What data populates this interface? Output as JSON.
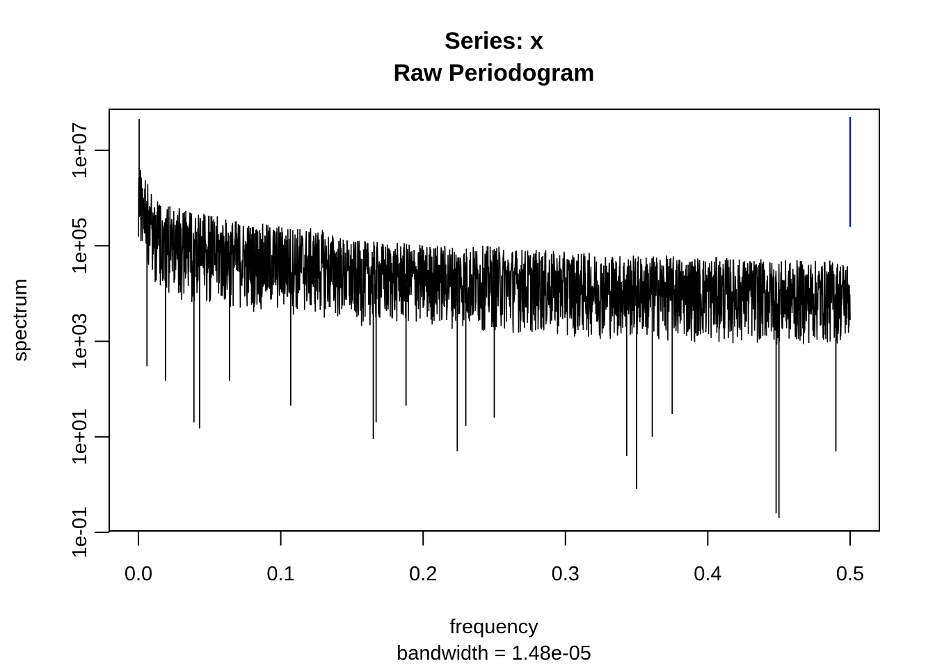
{
  "chart_data": {
    "type": "line",
    "title": "Series: x",
    "subtitle": "Raw Periodogram",
    "xlabel": "frequency",
    "xlabel_sub": "bandwidth = 1.48e-05",
    "ylabel": "spectrum",
    "xlim": [
      0,
      0.5
    ],
    "ylim": [
      0.1,
      50000000
    ],
    "y_scale": "log",
    "x_ticks": [
      "0.0",
      "0.1",
      "0.2",
      "0.3",
      "0.4",
      "0.5"
    ],
    "y_ticks": [
      "1e-01",
      "1e+01",
      "1e+03",
      "1e+05",
      "1e+07"
    ],
    "grid": false,
    "bandwidth": 1.48e-05,
    "series_color": "#000000",
    "ci_bar": {
      "x": 0.5,
      "y_low": 250000,
      "y_high": 50000000,
      "color": "#0000ff"
    },
    "envelope": {
      "x": [
        0,
        0.005,
        0.01,
        0.02,
        0.03,
        0.05,
        0.08,
        0.1,
        0.13,
        0.15,
        0.2,
        0.25,
        0.3,
        0.35,
        0.4,
        0.45,
        0.5
      ],
      "upper": [
        5000000,
        3000000,
        1200000,
        800000,
        600000,
        450000,
        300000,
        280000,
        220000,
        130000,
        110000,
        100000,
        75000,
        65000,
        60000,
        50000,
        50000
      ],
      "lower": [
        150000,
        50000,
        15000,
        10000,
        6000,
        5000,
        4000,
        3500,
        3000,
        2000,
        2000,
        1500,
        1200,
        1000,
        900,
        800,
        800
      ]
    },
    "spikes": [
      {
        "x": 0.0005,
        "y": 45000000
      },
      {
        "x": 0.006,
        "y": 300
      },
      {
        "x": 0.019,
        "y": 150
      },
      {
        "x": 0.039,
        "y": 20
      },
      {
        "x": 0.043,
        "y": 15
      },
      {
        "x": 0.064,
        "y": 150
      },
      {
        "x": 0.107,
        "y": 45
      },
      {
        "x": 0.165,
        "y": 9
      },
      {
        "x": 0.167,
        "y": 20
      },
      {
        "x": 0.188,
        "y": 45
      },
      {
        "x": 0.224,
        "y": 5
      },
      {
        "x": 0.23,
        "y": 17
      },
      {
        "x": 0.25,
        "y": 25
      },
      {
        "x": 0.343,
        "y": 4
      },
      {
        "x": 0.35,
        "y": 0.8
      },
      {
        "x": 0.361,
        "y": 10
      },
      {
        "x": 0.375,
        "y": 30
      },
      {
        "x": 0.448,
        "y": 0.25
      },
      {
        "x": 0.45,
        "y": 0.2
      },
      {
        "x": 0.49,
        "y": 5
      }
    ]
  }
}
